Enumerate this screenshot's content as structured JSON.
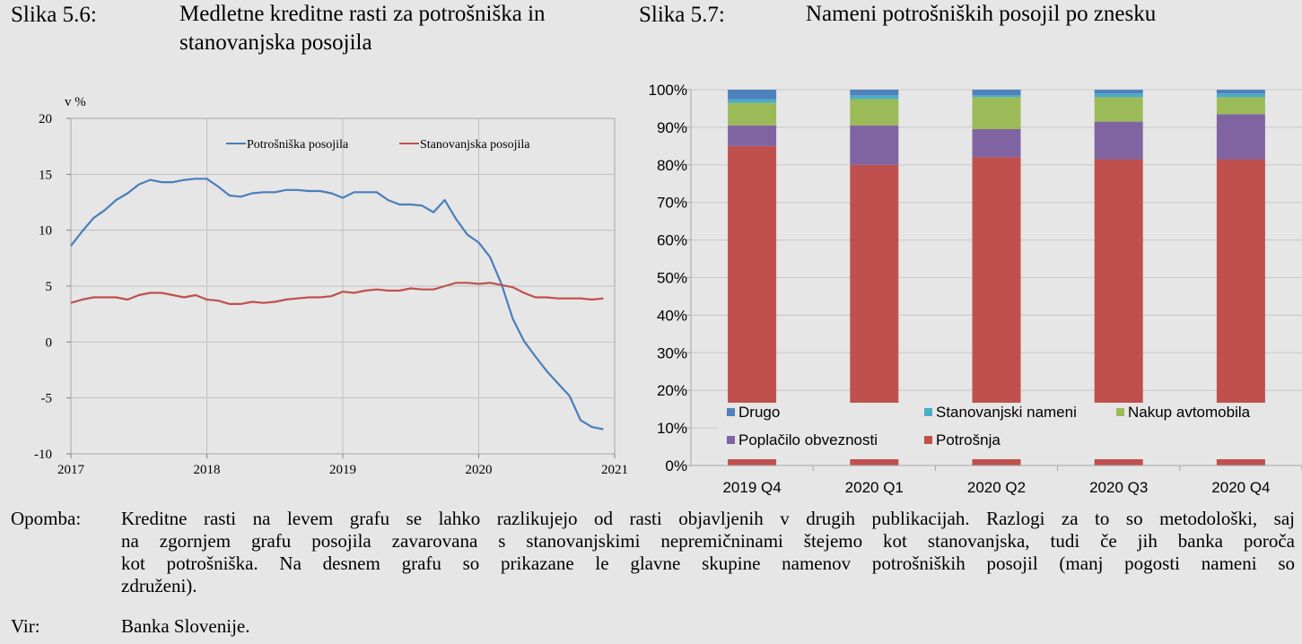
{
  "left_figure": {
    "label": "Slika 5.6:",
    "title_line1": "Medletne kreditne rasti za potrošniška in",
    "title_line2": "stanovanjska posojila"
  },
  "right_figure": {
    "label": "Slika 5.7:",
    "title": "Nameni potrošniških posojil po znesku"
  },
  "note": {
    "label": "Opomba:",
    "lines": [
      "Kreditne rasti na levem grafu se lahko razlikujejo od rasti objavljenih v drugih publikacijah. Razlogi za to so metodološki, saj",
      "na zgornjem grafu posojila zavarovana s stanovanjskimi nepremičninami štejemo kot stanovanjska, tudi če jih banka poroča",
      "kot potrošniška. Na desnem grafu so prikazane le glavne skupine namenov potrošniških posojil (manj pogosti nameni so",
      "združeni)."
    ]
  },
  "source": {
    "label": "Vir:",
    "text": "Banka Slovenije."
  },
  "chart_data": [
    {
      "type": "line",
      "ylabel": "v %",
      "ylim": [
        -10,
        20
      ],
      "yticks": [
        "20",
        "15",
        "10",
        "5",
        "0",
        "-5",
        "-10"
      ],
      "xticks": [
        "2017",
        "2018",
        "2019",
        "2020",
        "2021"
      ],
      "xlim": [
        2017,
        2021
      ],
      "grid": true,
      "legend": "top-right",
      "series": [
        {
          "name": "Potrošniška posojila",
          "color": "#4a7ebb",
          "x": [
            2017.0,
            2017.083,
            2017.167,
            2017.25,
            2017.333,
            2017.417,
            2017.5,
            2017.583,
            2017.667,
            2017.75,
            2017.833,
            2017.917,
            2018.0,
            2018.083,
            2018.167,
            2018.25,
            2018.333,
            2018.417,
            2018.5,
            2018.583,
            2018.667,
            2018.75,
            2018.833,
            2018.917,
            2019.0,
            2019.083,
            2019.167,
            2019.25,
            2019.333,
            2019.417,
            2019.5,
            2019.583,
            2019.667,
            2019.75,
            2019.833,
            2019.917,
            2020.0,
            2020.083,
            2020.167,
            2020.25,
            2020.333,
            2020.417,
            2020.5,
            2020.583,
            2020.667,
            2020.75,
            2020.833,
            2020.917
          ],
          "y": [
            8.6,
            9.9,
            11.1,
            11.8,
            12.7,
            13.3,
            14.1,
            14.5,
            14.3,
            14.3,
            14.5,
            14.6,
            14.6,
            13.9,
            13.1,
            13.0,
            13.3,
            13.4,
            13.4,
            13.6,
            13.6,
            13.5,
            13.5,
            13.3,
            12.9,
            13.4,
            13.4,
            13.4,
            12.7,
            12.3,
            12.3,
            12.2,
            11.6,
            12.7,
            11.0,
            9.6,
            8.9,
            7.6,
            5.2,
            2.1,
            0.1,
            -1.3,
            -2.6,
            -3.7,
            -4.8,
            -7.0,
            -7.6,
            -7.8
          ]
        },
        {
          "name": "Stanovanjska posojila",
          "color": "#c0504d",
          "x": [
            2017.0,
            2017.083,
            2017.167,
            2017.25,
            2017.333,
            2017.417,
            2017.5,
            2017.583,
            2017.667,
            2017.75,
            2017.833,
            2017.917,
            2018.0,
            2018.083,
            2018.167,
            2018.25,
            2018.333,
            2018.417,
            2018.5,
            2018.583,
            2018.667,
            2018.75,
            2018.833,
            2018.917,
            2019.0,
            2019.083,
            2019.167,
            2019.25,
            2019.333,
            2019.417,
            2019.5,
            2019.583,
            2019.667,
            2019.75,
            2019.833,
            2019.917,
            2020.0,
            2020.083,
            2020.167,
            2020.25,
            2020.333,
            2020.417,
            2020.5,
            2020.583,
            2020.667,
            2020.75,
            2020.833,
            2020.917
          ],
          "y": [
            3.5,
            3.8,
            4.0,
            4.0,
            4.0,
            3.8,
            4.2,
            4.4,
            4.4,
            4.2,
            4.0,
            4.2,
            3.8,
            3.7,
            3.4,
            3.4,
            3.6,
            3.5,
            3.6,
            3.8,
            3.9,
            4.0,
            4.0,
            4.1,
            4.5,
            4.4,
            4.6,
            4.7,
            4.6,
            4.6,
            4.8,
            4.7,
            4.7,
            5.0,
            5.3,
            5.3,
            5.2,
            5.3,
            5.1,
            4.9,
            4.4,
            4.0,
            4.0,
            3.9,
            3.9,
            3.9,
            3.8,
            3.9
          ]
        }
      ]
    },
    {
      "type": "bar",
      "stacked": true,
      "categories": [
        "2019 Q4",
        "2020 Q1",
        "2020 Q2",
        "2020 Q3",
        "2020 Q4"
      ],
      "ylim": [
        0,
        100
      ],
      "yticks": [
        "0%",
        "10%",
        "20%",
        "30%",
        "40%",
        "50%",
        "60%",
        "70%",
        "80%",
        "90%",
        "100%"
      ],
      "legend": "inside-bottom",
      "series": [
        {
          "name": "Potrošnja",
          "color": "#c0504d",
          "values": [
            85,
            80,
            82,
            81.5,
            81.5
          ]
        },
        {
          "name": "Poplačilo obveznosti",
          "color": "#8064a2",
          "values": [
            5.5,
            10.5,
            7.5,
            10,
            12
          ]
        },
        {
          "name": "Nakup avtomobila",
          "color": "#9bbb59",
          "values": [
            6,
            7,
            8.5,
            6.5,
            4.5
          ]
        },
        {
          "name": "Stanovanjski nameni",
          "color": "#4bacc6",
          "values": [
            1,
            1,
            0.5,
            1,
            1
          ]
        },
        {
          "name": "Drugo",
          "color": "#4f81bd",
          "values": [
            2.5,
            1.5,
            1.5,
            1,
            1
          ]
        }
      ]
    }
  ]
}
